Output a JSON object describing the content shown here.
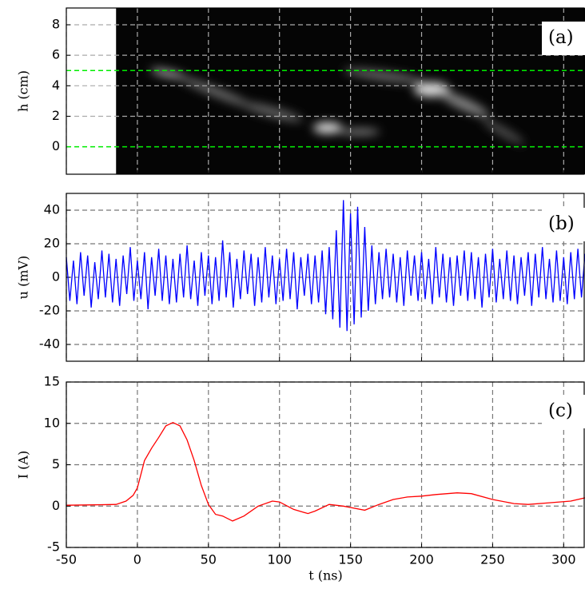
{
  "chart_data": [
    {
      "type": "image",
      "annotation": "(a)",
      "ylabel": "h (cm)",
      "extent": [
        -15,
        315
      ],
      "xlim": [
        -50,
        315
      ],
      "ylim": [
        -1.8,
        9.1
      ],
      "xticks": [
        -50,
        0,
        50,
        100,
        150,
        200,
        250,
        300
      ],
      "yticks": [
        0,
        2,
        4,
        6,
        8
      ],
      "hlines": [
        {
          "value": 5,
          "color": "#00ee00"
        },
        {
          "value": 0,
          "color": "#00ee00"
        }
      ],
      "grid": true,
      "show_xtick_labels": false
    },
    {
      "type": "line",
      "annotation": "(b)",
      "ylabel": "u (mV)",
      "color": "#0000ff",
      "xlim": [
        -50,
        315
      ],
      "ylim": [
        -50,
        50
      ],
      "xticks": [
        -50,
        0,
        50,
        100,
        150,
        200,
        250,
        300
      ],
      "yticks": [
        -40,
        -20,
        0,
        20,
        40
      ],
      "grid": true,
      "show_xtick_labels": false,
      "x": [
        -50,
        -47.5,
        -45,
        -42.5,
        -40,
        -37.5,
        -35,
        -32.5,
        -30,
        -27.5,
        -25,
        -22.5,
        -20,
        -17.5,
        -15,
        -12.5,
        -10,
        -7.5,
        -5,
        -2.5,
        0,
        2.5,
        5,
        7.5,
        10,
        12.5,
        15,
        17.5,
        20,
        22.5,
        25,
        27.5,
        30,
        32.5,
        35,
        37.5,
        40,
        42.5,
        45,
        47.5,
        50,
        52.5,
        55,
        57.5,
        60,
        62.5,
        65,
        67.5,
        70,
        72.5,
        75,
        77.5,
        80,
        82.5,
        85,
        87.5,
        90,
        92.5,
        95,
        97.5,
        100,
        102.5,
        105,
        107.5,
        110,
        112.5,
        115,
        117.5,
        120,
        122.5,
        125,
        127.5,
        130,
        132.5,
        135,
        137.5,
        140,
        142.5,
        145,
        147.5,
        150,
        152.5,
        155,
        157.5,
        160,
        162.5,
        165,
        167.5,
        170,
        172.5,
        175,
        177.5,
        180,
        182.5,
        185,
        187.5,
        190,
        192.5,
        195,
        197.5,
        200,
        202.5,
        205,
        207.5,
        210,
        212.5,
        215,
        217.5,
        220,
        222.5,
        225,
        227.5,
        230,
        232.5,
        235,
        237.5,
        240,
        242.5,
        245,
        247.5,
        250,
        252.5,
        255,
        257.5,
        260,
        262.5,
        265,
        267.5,
        270,
        272.5,
        275,
        277.5,
        280,
        282.5,
        285,
        287.5,
        290,
        292.5,
        295,
        297.5,
        300,
        302.5,
        305,
        307.5,
        310,
        312.5,
        315
      ],
      "values": [
        12,
        -14,
        10,
        -16,
        15,
        -11,
        13,
        -18,
        9,
        -13,
        16,
        -12,
        14,
        -15,
        11,
        -17,
        13,
        -10,
        18,
        -14,
        10,
        -13,
        15,
        -19,
        12,
        -11,
        17,
        -14,
        13,
        -16,
        11,
        -15,
        14,
        -12,
        19,
        -13,
        10,
        -17,
        15,
        -11,
        13,
        -16,
        12,
        -14,
        22,
        -12,
        15,
        -18,
        11,
        -13,
        16,
        -10,
        14,
        -17,
        12,
        -15,
        18,
        -12,
        13,
        -16,
        11,
        -14,
        17,
        -13,
        15,
        -19,
        12,
        -11,
        14,
        -16,
        13,
        -15,
        16,
        -22,
        18,
        -25,
        28,
        -30,
        46,
        -32,
        38,
        -28,
        42,
        -24,
        30,
        -20,
        19,
        -16,
        15,
        -13,
        17,
        -12,
        14,
        -15,
        12,
        -17,
        16,
        -11,
        13,
        -14,
        15,
        -13,
        11,
        -16,
        18,
        -12,
        14,
        -15,
        12,
        -17,
        13,
        -11,
        16,
        -14,
        15,
        -13,
        12,
        -18,
        14,
        -12,
        17,
        -15,
        11,
        -13,
        16,
        -14,
        13,
        -16,
        12,
        -11,
        15,
        -17,
        14,
        -12,
        18,
        -13,
        11,
        -15,
        16,
        -14,
        12,
        -16,
        15,
        -13,
        17,
        -12,
        14
      ]
    },
    {
      "type": "line",
      "annotation": "(c)",
      "ylabel": "I (A)",
      "xlabel": "t (ns)",
      "color": "#ff0000",
      "xlim": [
        -50,
        315
      ],
      "ylim": [
        -5,
        15
      ],
      "xticks": [
        -50,
        0,
        50,
        100,
        150,
        200,
        250,
        300
      ],
      "yticks": [
        -5,
        0,
        5,
        10,
        15
      ],
      "grid": true,
      "show_xtick_labels": true,
      "x": [
        -50,
        -30,
        -15,
        -8,
        -3,
        0,
        5,
        10,
        15,
        20,
        25,
        30,
        35,
        40,
        45,
        50,
        55,
        60,
        67,
        75,
        85,
        95,
        100,
        110,
        120,
        125,
        135,
        145,
        160,
        170,
        180,
        190,
        200,
        210,
        225,
        235,
        250,
        265,
        275,
        290,
        305,
        315
      ],
      "values": [
        0.1,
        0.15,
        0.2,
        0.6,
        1.3,
        2.2,
        5.5,
        7,
        8.3,
        9.7,
        10.1,
        9.7,
        8,
        5.5,
        2.5,
        0.2,
        -1,
        -1.2,
        -1.8,
        -1.2,
        0,
        0.6,
        0.5,
        -0.4,
        -0.9,
        -0.6,
        0.2,
        0,
        -0.5,
        0.2,
        0.8,
        1.1,
        1.2,
        1.4,
        1.6,
        1.5,
        0.8,
        0.3,
        0.2,
        0.4,
        0.6,
        1.0
      ]
    }
  ]
}
